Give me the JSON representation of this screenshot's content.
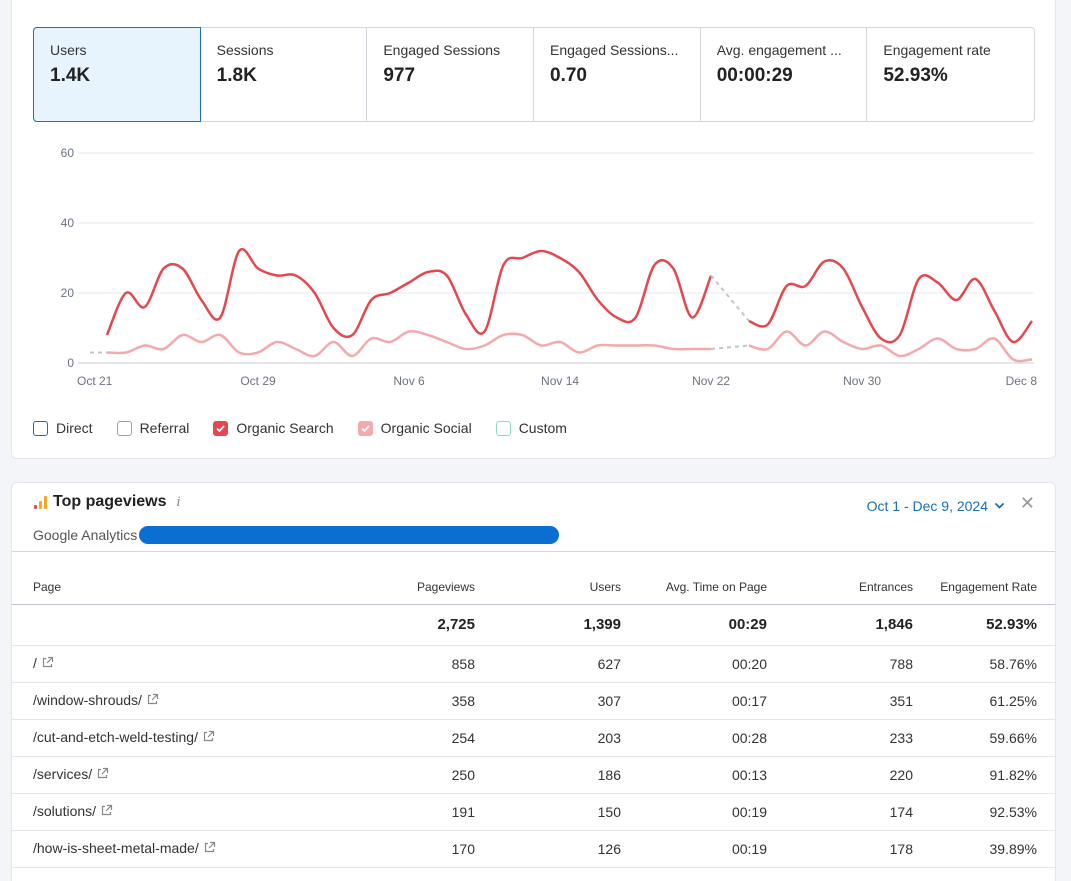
{
  "kpis": [
    {
      "label": "Users",
      "value": "1.4K"
    },
    {
      "label": "Sessions",
      "value": "1.8K"
    },
    {
      "label": "Engaged Sessions",
      "value": "977"
    },
    {
      "label": "Engaged Sessions...",
      "value": "0.70"
    },
    {
      "label": "Avg. engagement ...",
      "value": "00:00:29"
    },
    {
      "label": "Engagement rate",
      "value": "52.93%"
    }
  ],
  "chart_data": {
    "type": "line",
    "title": "",
    "xlabel": "",
    "ylabel": "",
    "ylim": [
      0,
      60
    ],
    "y_ticks": [
      "0",
      "20",
      "40",
      "60"
    ],
    "x_ticks": [
      "Oct 21",
      "Oct 29",
      "Nov 6",
      "Nov 14",
      "Nov 22",
      "Nov 30",
      "Dec 8"
    ],
    "x": [
      "Oct 21",
      "Oct 22",
      "Oct 23",
      "Oct 24",
      "Oct 25",
      "Oct 26",
      "Oct 27",
      "Oct 28",
      "Oct 29",
      "Oct 30",
      "Oct 31",
      "Nov 1",
      "Nov 2",
      "Nov 3",
      "Nov 4",
      "Nov 5",
      "Nov 6",
      "Nov 7",
      "Nov 8",
      "Nov 9",
      "Nov 10",
      "Nov 11",
      "Nov 12",
      "Nov 13",
      "Nov 14",
      "Nov 15",
      "Nov 16",
      "Nov 17",
      "Nov 18",
      "Nov 19",
      "Nov 20",
      "Nov 21",
      "Nov 22",
      "Nov 23",
      "Nov 24",
      "Nov 25",
      "Nov 26",
      "Nov 27",
      "Nov 28",
      "Nov 29",
      "Nov 30",
      "Dec 1",
      "Dec 2",
      "Dec 3",
      "Dec 4",
      "Dec 5",
      "Dec 6",
      "Dec 7",
      "Dec 8",
      "Dec 9"
    ],
    "grid": true,
    "legend_position": "bottom-left",
    "series": [
      {
        "name": "Organic Search",
        "color": "#e5474f",
        "values": [
          8,
          20,
          16,
          27,
          27,
          18,
          13,
          32,
          27,
          25,
          25,
          20,
          10,
          8,
          18,
          20,
          23,
          26,
          25,
          14,
          9,
          28,
          30,
          32,
          30,
          26,
          18,
          13,
          13,
          28,
          27,
          13,
          25,
          null,
          12,
          11,
          22,
          22,
          29,
          27,
          16,
          7,
          8,
          24,
          23,
          18,
          24,
          15,
          6,
          12
        ],
        "gap_segments": [
          [
            32,
            34
          ]
        ]
      },
      {
        "name": "Organic Social",
        "color": "#f4a9ae",
        "values": [
          3,
          3,
          5,
          4,
          8,
          6,
          8,
          3,
          3,
          6,
          4,
          2,
          6,
          2,
          7,
          6,
          9,
          8,
          6,
          4,
          5,
          8,
          8,
          5,
          6,
          3,
          5,
          5,
          5,
          5,
          4,
          4,
          4,
          null,
          5,
          4,
          9,
          5,
          9,
          6,
          4,
          5,
          2,
          4,
          7,
          4,
          4,
          7,
          1,
          1
        ],
        "gap_segments": [
          [
            32,
            34
          ]
        ]
      }
    ]
  },
  "legend": [
    {
      "label": "Direct",
      "color": "#1a6eb5",
      "checked": false
    },
    {
      "label": "Referral",
      "color": "#7cbf5a",
      "checked": false
    },
    {
      "label": "Organic Search",
      "color": "#e5474f",
      "checked": true
    },
    {
      "label": "Organic Social",
      "color": "#f4a9ae",
      "checked": true
    },
    {
      "label": "Custom",
      "color": "#8fdcc6",
      "checked": false
    }
  ],
  "widget": {
    "title": "Top pageviews",
    "info": "i",
    "source": "Google Analytics",
    "date_range": "Oct 1 - Dec 9, 2024"
  },
  "table": {
    "headers": [
      "Page",
      "Pageviews",
      "Users",
      "Avg. Time on Page",
      "Entrances",
      "Engagement Rate"
    ],
    "totals": [
      "",
      "2,725",
      "1,399",
      "00:29",
      "1,846",
      "52.93%"
    ],
    "rows": [
      [
        "/",
        "858",
        "627",
        "00:20",
        "788",
        "58.76%"
      ],
      [
        "/window-shrouds/",
        "358",
        "307",
        "00:17",
        "351",
        "61.25%"
      ],
      [
        "/cut-and-etch-weld-testing/",
        "254",
        "203",
        "00:28",
        "233",
        "59.66%"
      ],
      [
        "/services/",
        "250",
        "186",
        "00:13",
        "220",
        "91.82%"
      ],
      [
        "/solutions/",
        "191",
        "150",
        "00:19",
        "174",
        "92.53%"
      ],
      [
        "/how-is-sheet-metal-made/",
        "170",
        "126",
        "00:19",
        "178",
        "39.89%"
      ]
    ]
  }
}
